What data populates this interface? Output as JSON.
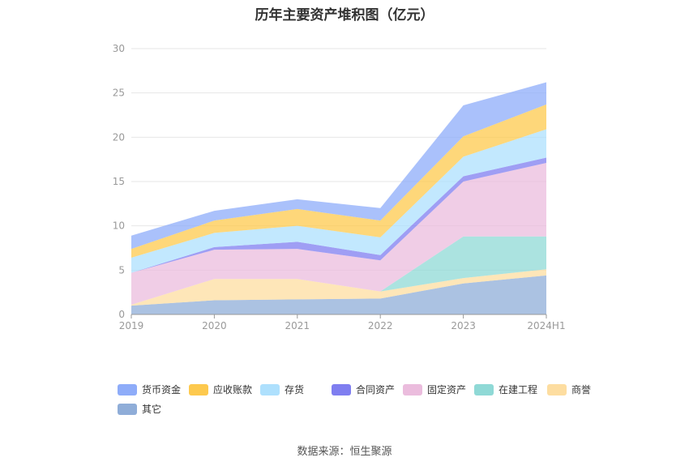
{
  "page": {
    "title": "历年主要资产堆积图（亿元）",
    "source": "数据来源：恒生聚源"
  },
  "chart_data": {
    "type": "area",
    "stacked": true,
    "categories": [
      "2019",
      "2020",
      "2021",
      "2022",
      "2023",
      "2024H1"
    ],
    "ylim": [
      0,
      30
    ],
    "yticks": [
      0,
      5,
      10,
      15,
      20,
      25,
      30
    ],
    "grid": true,
    "legend_position": "bottom",
    "series": [
      {
        "name": "其它",
        "color": "#8fadd8",
        "values": [
          1.0,
          1.6,
          1.7,
          1.8,
          3.5,
          4.4
        ]
      },
      {
        "name": "商誉",
        "color": "#fddda0",
        "values": [
          0.1,
          2.4,
          2.3,
          0.8,
          0.6,
          0.7
        ]
      },
      {
        "name": "在建工程",
        "color": "#8fd9d6",
        "values": [
          0.0,
          0.0,
          0.0,
          0.0,
          4.7,
          3.7
        ]
      },
      {
        "name": "固定资产",
        "color": "#ebbcdd",
        "values": [
          3.6,
          3.3,
          3.4,
          3.5,
          6.2,
          8.3
        ]
      },
      {
        "name": "合同资产",
        "color": "#7f7ef0",
        "values": [
          0.0,
          0.3,
          0.8,
          0.6,
          0.6,
          0.6
        ]
      },
      {
        "name": "存货",
        "color": "#aee0fd",
        "values": [
          1.7,
          1.6,
          1.8,
          2.0,
          2.2,
          3.2
        ]
      },
      {
        "name": "应收账款",
        "color": "#fdc94e",
        "values": [
          1.0,
          1.4,
          1.9,
          1.9,
          2.3,
          2.8
        ]
      },
      {
        "name": "货币资金",
        "color": "#8eacf9",
        "values": [
          1.5,
          1.1,
          1.1,
          1.4,
          3.5,
          2.5
        ]
      }
    ],
    "legend_order": [
      "货币资金",
      "应收账款",
      "存货",
      "合同资产",
      "固定资产",
      "在建工程",
      "商誉",
      "其它"
    ]
  }
}
